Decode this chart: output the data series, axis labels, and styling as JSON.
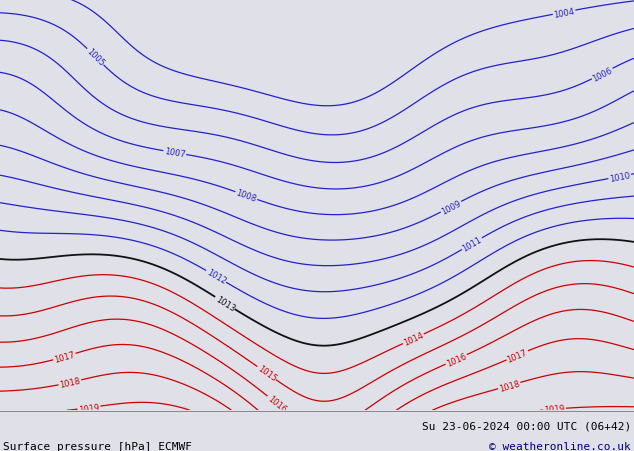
{
  "title_left": "Surface pressure [hPa] ECMWF",
  "title_right": "Su 23-06-2024 00:00 UTC (06+42)",
  "copyright": "© weatheronline.co.uk",
  "bg_color": "#e0e0e8",
  "land_color": "#c8eac8",
  "coast_color": "#999999",
  "border_color": "#777777",
  "isobar_blue_color": "#2222cc",
  "isobar_black_color": "#111111",
  "isobar_red_color": "#cc0000",
  "label_fontsize": 6,
  "title_fontsize": 8,
  "blue_levels": [
    1004,
    1005,
    1006,
    1007,
    1008,
    1009,
    1010,
    1011,
    1012
  ],
  "black_levels": [
    1013
  ],
  "red_levels": [
    1014,
    1015,
    1016,
    1017,
    1018,
    1019
  ],
  "extent": [
    -12,
    10,
    49,
    62
  ],
  "figsize": [
    6.34,
    4.52
  ],
  "dpi": 100
}
